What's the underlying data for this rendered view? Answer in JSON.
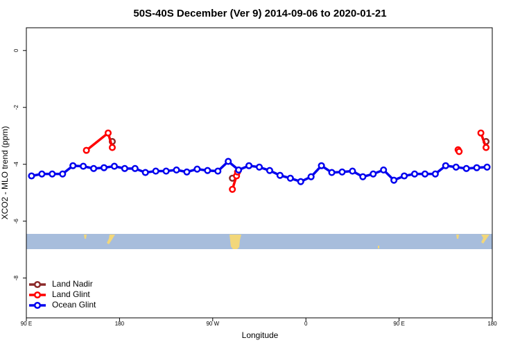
{
  "chart_data": {
    "type": "line",
    "title": "50S-40S December (Ver 9)   2014-09-06 to 2020-01-21",
    "x_label": "Longitude",
    "y_label": "XCO2 - MLO trend (ppm)",
    "xlim": [
      90,
      540
    ],
    "ylim": [
      -9.4,
      0.8
    ],
    "xticks": [
      {
        "value": 90,
        "label": "90 E"
      },
      {
        "value": 180,
        "label": "180"
      },
      {
        "value": 270,
        "label": "90 W"
      },
      {
        "value": 360,
        "label": "0"
      },
      {
        "value": 450,
        "label": "90 E"
      },
      {
        "value": 540,
        "label": "180"
      }
    ],
    "yticks": [
      0,
      -2,
      -4,
      -6,
      -8
    ],
    "legend": "bottom-left",
    "series": [
      {
        "name": "Land Nadir",
        "color": "#8b2a2a",
        "x": [
          173,
          null,
          289,
          null,
          534
        ],
        "values": [
          -3.2,
          null,
          -4.49,
          null,
          -3.2
        ]
      },
      {
        "name": "Land Glint",
        "color": "#ff0000",
        "x": [
          148,
          169,
          173,
          null,
          289,
          293,
          294,
          null,
          507,
          508,
          null,
          529,
          534
        ],
        "values": [
          -3.51,
          -2.9,
          -3.41,
          null,
          -4.88,
          -4.41,
          -4.27,
          null,
          -3.49,
          -3.55,
          null,
          -2.9,
          -3.41
        ]
      },
      {
        "name": "Ocean Glint",
        "color": "#0000ee",
        "x": [
          95,
          105,
          115,
          125,
          135,
          145,
          155,
          165,
          175,
          185,
          195,
          205,
          215,
          225,
          235,
          245,
          255,
          265,
          275,
          285,
          295,
          305,
          315,
          325,
          335,
          345,
          355,
          365,
          375,
          385,
          395,
          405,
          415,
          425,
          435,
          445,
          455,
          465,
          475,
          485,
          495,
          505,
          515,
          525,
          535
        ],
        "values": [
          -4.41,
          -4.34,
          -4.34,
          -4.34,
          -4.05,
          -4.07,
          -4.15,
          -4.12,
          -4.07,
          -4.15,
          -4.15,
          -4.29,
          -4.24,
          -4.24,
          -4.2,
          -4.27,
          -4.17,
          -4.22,
          -4.24,
          -3.9,
          -4.2,
          -4.05,
          -4.1,
          -4.22,
          -4.39,
          -4.49,
          -4.61,
          -4.44,
          -4.05,
          -4.29,
          -4.27,
          -4.24,
          -4.44,
          -4.34,
          -4.2,
          -4.56,
          -4.41,
          -4.34,
          -4.34,
          -4.34,
          -4.05,
          -4.1,
          -4.15,
          -4.12,
          -4.1
        ]
      }
    ]
  }
}
